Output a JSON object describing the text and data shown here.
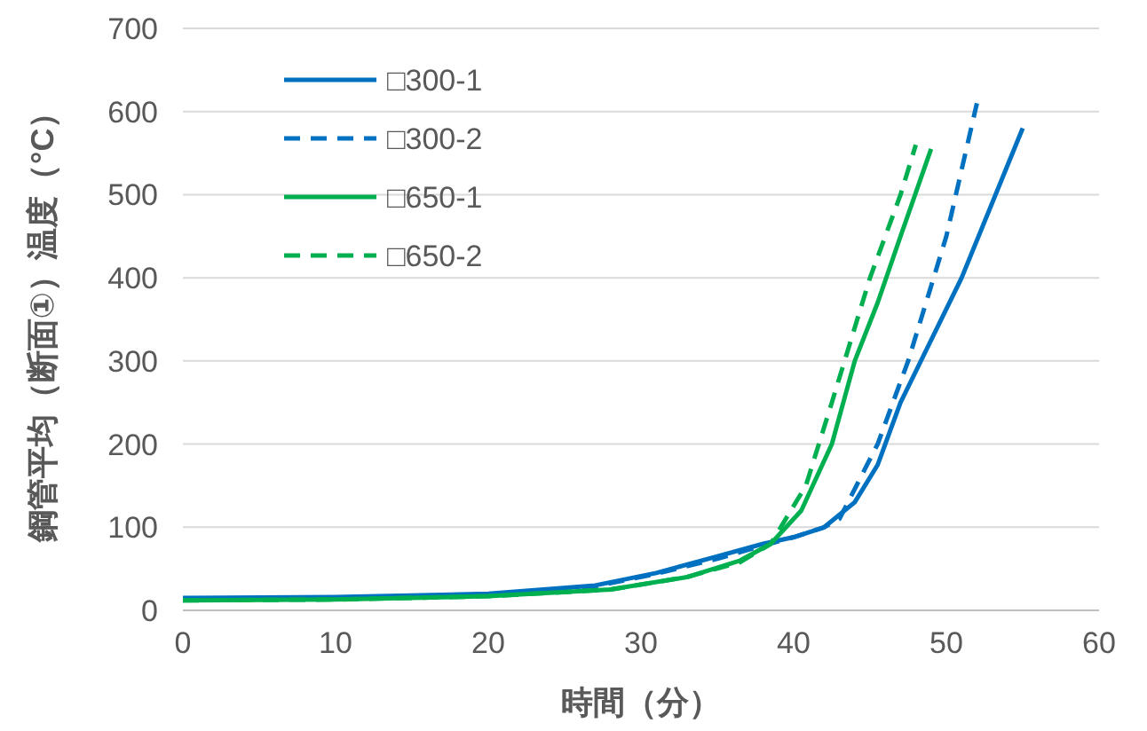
{
  "chart_data": {
    "type": "line",
    "xlabel": "時間（分）",
    "ylabel": "鋼管平均（断面①）温度（°C）",
    "xlim": [
      0,
      60
    ],
    "xticks": [
      0,
      10,
      20,
      30,
      40,
      50,
      60
    ],
    "ylim": [
      0,
      700
    ],
    "yticks": [
      0,
      100,
      200,
      300,
      400,
      500,
      600,
      700
    ],
    "grid": "y",
    "legend": "top left",
    "marker": "none",
    "series": [
      {
        "name": "□300-1",
        "color": "#0070c0",
        "line_style": "solid",
        "x": [
          0,
          10,
          20,
          27,
          31,
          35,
          38,
          40,
          42,
          44,
          45.5,
          47,
          51,
          55
        ],
        "values": [
          15,
          16,
          20,
          30,
          45,
          65,
          80,
          88,
          100,
          130,
          175,
          250,
          400,
          580
        ]
      },
      {
        "name": "□300-2",
        "color": "#0070c0",
        "line_style": "dashed",
        "x": [
          0,
          10,
          20,
          27,
          31,
          35,
          38,
          40,
          42,
          43,
          45.5,
          47.5,
          50,
          52
        ],
        "values": [
          13,
          14,
          19,
          29,
          44,
          62,
          78,
          88,
          100,
          110,
          200,
          300,
          450,
          610
        ]
      },
      {
        "name": "□650-1",
        "color": "#00b050",
        "line_style": "solid",
        "x": [
          0,
          10,
          20,
          28,
          33,
          36.5,
          38.5,
          40.5,
          42.5,
          44,
          45.5,
          47,
          49
        ],
        "values": [
          12,
          13,
          17,
          25,
          40,
          60,
          80,
          120,
          200,
          300,
          370,
          450,
          555
        ]
      },
      {
        "name": "□650-2",
        "color": "#00b050",
        "line_style": "dashed",
        "x": [
          0,
          10,
          20,
          28,
          33,
          36.5,
          38.5,
          40.8,
          42.5,
          45,
          47,
          48
        ],
        "values": [
          12,
          13,
          17,
          25,
          40,
          58,
          80,
          150,
          250,
          400,
          500,
          560
        ]
      }
    ]
  }
}
